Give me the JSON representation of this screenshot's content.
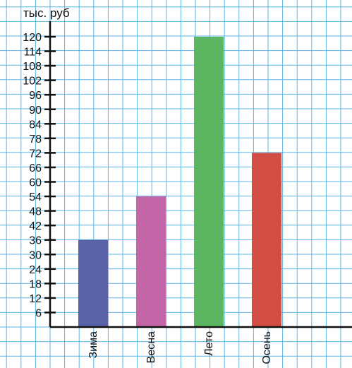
{
  "chart_data": {
    "type": "bar",
    "unit_label": "тыс. руб",
    "categories": [
      "Зима",
      "Весна",
      "Лето",
      "Осень"
    ],
    "values": [
      36,
      54,
      120,
      72
    ],
    "colors": [
      "#5b63a8",
      "#c465a8",
      "#5cb560",
      "#d24e45"
    ],
    "yticks": [
      6,
      12,
      18,
      24,
      30,
      36,
      42,
      48,
      54,
      60,
      66,
      72,
      78,
      84,
      90,
      96,
      102,
      108,
      114,
      120
    ],
    "ylim": [
      0,
      120
    ],
    "grid": true,
    "grid_color": "#5ab6e6"
  }
}
